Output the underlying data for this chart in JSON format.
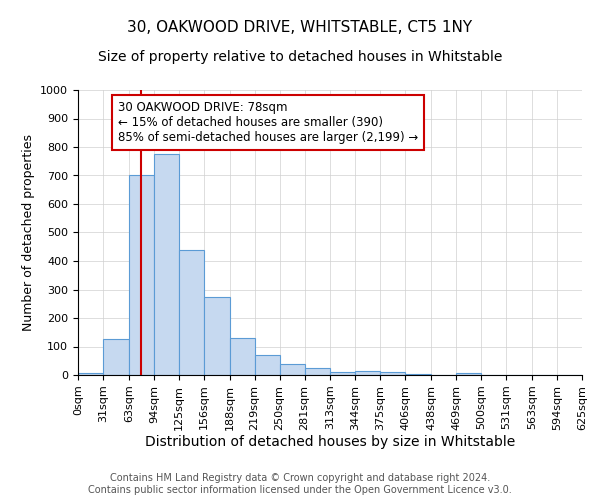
{
  "title1": "30, OAKWOOD DRIVE, WHITSTABLE, CT5 1NY",
  "title2": "Size of property relative to detached houses in Whitstable",
  "xlabel": "Distribution of detached houses by size in Whitstable",
  "ylabel": "Number of detached properties",
  "bin_edges": [
    0,
    31,
    63,
    94,
    125,
    156,
    188,
    219,
    250,
    281,
    313,
    344,
    375,
    406,
    438,
    469,
    500,
    531,
    563,
    594,
    625
  ],
  "bar_heights": [
    8,
    128,
    700,
    775,
    440,
    275,
    130,
    70,
    40,
    25,
    10,
    15,
    10,
    2,
    0,
    8,
    0,
    0,
    0,
    0
  ],
  "bar_color": "#c6d9f0",
  "bar_edge_color": "#5b9bd5",
  "red_line_x": 78,
  "ylim": [
    0,
    1000
  ],
  "annotation_text": "30 OAKWOOD DRIVE: 78sqm\n← 15% of detached houses are smaller (390)\n85% of semi-detached houses are larger (2,199) →",
  "annotation_box_color": "#ffffff",
  "annotation_box_edge_color": "#cc0000",
  "footer1": "Contains HM Land Registry data © Crown copyright and database right 2024.",
  "footer2": "Contains public sector information licensed under the Open Government Licence v3.0.",
  "title1_fontsize": 11,
  "title2_fontsize": 10,
  "xlabel_fontsize": 10,
  "ylabel_fontsize": 9,
  "tick_fontsize": 8,
  "annotation_fontsize": 8.5,
  "footer_fontsize": 7
}
